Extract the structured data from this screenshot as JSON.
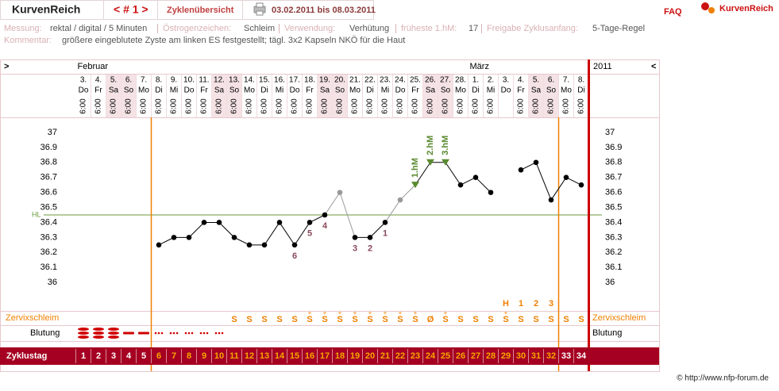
{
  "header": {
    "app": "KurvenReich",
    "nav": "< # 1 >",
    "overview": "Zyklenübersicht",
    "range": "03.02.2011 bis 08.03.2011",
    "faq": "FAQ",
    "logo": "KurvenReich"
  },
  "info": {
    "measure_label": "Messung:",
    "measure": "rektal / digital / 5 Minuten",
    "estrogen_label": "Östrogenzeichen:",
    "estrogen": "Schleim",
    "usage_label": "Verwendung:",
    "usage": "Verhütung",
    "earliest_label": "früheste 1.hM:",
    "earliest": 17,
    "release_label": "Freigabe Zyklusanfang:",
    "release": "5-Tage-Regel",
    "comment_label": "Kommentar:",
    "comment": "größere eingeblutete Zyste am linken ES festgestellt; tägl. 3x2 Kapseln NKÖ für die Haut"
  },
  "footer": "© http://www.nfp-forum.de",
  "chart_data": {
    "type": "line",
    "nav_left": ">",
    "nav_right": "<",
    "year": "2011",
    "months": [
      "Februar",
      null,
      null,
      null,
      null,
      null,
      null,
      null,
      null,
      null,
      null,
      null,
      null,
      null,
      null,
      null,
      null,
      null,
      null,
      null,
      null,
      null,
      null,
      null,
      null,
      null,
      "März",
      null,
      null,
      null,
      null,
      null,
      null,
      null
    ],
    "days": [
      "3.",
      "4.",
      "5.",
      "6.",
      "7.",
      "8.",
      "9.",
      "10.",
      "11.",
      "12.",
      "13.",
      "14.",
      "15.",
      "16.",
      "17.",
      "18.",
      "19.",
      "20.",
      "21.",
      "22.",
      "23.",
      "24.",
      "25.",
      "26.",
      "27.",
      "28.",
      "1.",
      "2.",
      "3.",
      "4.",
      "5.",
      "6.",
      "7.",
      "8."
    ],
    "weekdays": [
      "Do",
      "Fr",
      "Sa",
      "So",
      "Mo",
      "Di",
      "Mi",
      "Do",
      "Fr",
      "Sa",
      "So",
      "Mo",
      "Di",
      "Mi",
      "Do",
      "Fr",
      "Sa",
      "So",
      "Mo",
      "Di",
      "Mi",
      "Do",
      "Fr",
      "Sa",
      "So",
      "Mo",
      "Di",
      "Mi",
      "Do",
      "Fr",
      "Sa",
      "So",
      "Mo",
      "Di"
    ],
    "times": [
      "6:00",
      "6:00",
      "6:00",
      "6:00",
      "6:00",
      "6:00",
      "6:00",
      "6:00",
      "6:00",
      "6:00",
      "6:00",
      "6:00",
      "6:00",
      "6:00",
      "6:00",
      "6:00",
      "6:00",
      "6:00",
      "6:00",
      "6:00",
      "6:00",
      "6:00",
      "6:00",
      "6:00",
      "6:00",
      "6:00",
      "6:00",
      "6:00",
      null,
      "6:00",
      "6:00",
      "6:00",
      "6:00",
      "6:00"
    ],
    "shaded": [
      false,
      false,
      true,
      true,
      false,
      false,
      false,
      false,
      false,
      true,
      true,
      false,
      false,
      false,
      false,
      false,
      true,
      true,
      false,
      false,
      false,
      false,
      false,
      true,
      true,
      false,
      false,
      false,
      false,
      false,
      true,
      true,
      false,
      false
    ],
    "ylim": [
      35.8,
      37.1
    ],
    "yticks": [
      36,
      36.1,
      36.2,
      36.3,
      36.4,
      36.5,
      36.6,
      36.7,
      36.8,
      36.9,
      37
    ],
    "grid": false,
    "values": [
      null,
      null,
      null,
      null,
      null,
      36.25,
      36.3,
      36.3,
      36.4,
      36.4,
      36.3,
      36.25,
      36.25,
      36.4,
      36.25,
      36.4,
      36.45,
      36.6,
      36.3,
      36.3,
      36.4,
      36.55,
      36.65,
      36.8,
      36.8,
      36.65,
      36.7,
      36.6,
      null,
      36.75,
      36.8,
      36.55,
      36.7,
      36.65
    ],
    "color": "#000000",
    "point_colors": [
      "#000000",
      "#000000",
      "#000000",
      "#000000",
      "#000000",
      "#000000",
      "#000000",
      "#000000",
      "#000000",
      "#000000",
      "#000000",
      "#000000",
      "#000000",
      "#000000",
      "#000000",
      "#000000",
      "#000000",
      "#999999",
      "#000000",
      "#000000",
      "#000000",
      "#999999",
      "#000000",
      "#000000",
      "#000000",
      "#000000",
      "#000000",
      "#000000",
      "#000000",
      "#000000",
      "#000000",
      "#000000",
      "#000000",
      "#000000"
    ],
    "hl": {
      "label": "HL",
      "value": 36.45,
      "color": "#6a9a3a"
    },
    "count_labels": [
      null,
      null,
      null,
      null,
      null,
      null,
      null,
      null,
      null,
      null,
      null,
      null,
      null,
      null,
      6,
      5,
      4,
      null,
      3,
      2,
      1,
      null,
      null,
      null,
      null,
      null,
      null,
      null,
      null,
      null,
      null,
      null,
      null,
      null
    ],
    "count_color": "#8a4a5a",
    "hm_labels": [
      null,
      null,
      null,
      null,
      null,
      null,
      null,
      null,
      null,
      null,
      null,
      null,
      null,
      null,
      null,
      null,
      null,
      null,
      null,
      null,
      null,
      null,
      "1.hM",
      "2.hM",
      "3.hM",
      null,
      null,
      null,
      null,
      null,
      null,
      null,
      null,
      null
    ],
    "hm_color": "#5a8a30",
    "peak_labels": [
      null,
      null,
      null,
      null,
      null,
      null,
      null,
      null,
      null,
      null,
      null,
      null,
      null,
      null,
      null,
      null,
      null,
      null,
      null,
      null,
      null,
      null,
      null,
      null,
      null,
      null,
      null,
      null,
      "H",
      1,
      2,
      3,
      null,
      null
    ],
    "mucus_label": "Zervixschleim",
    "mucus": [
      null,
      null,
      null,
      null,
      null,
      null,
      null,
      null,
      null,
      null,
      "S",
      "S",
      "S",
      "S",
      "S",
      "S",
      "S",
      "S",
      "S",
      "S",
      "S",
      "S",
      "S",
      "Ø",
      "S",
      "S",
      "S",
      "S",
      "S",
      "S",
      "S",
      "S",
      "S",
      "S"
    ],
    "mucus_plus": [
      null,
      null,
      null,
      null,
      null,
      null,
      null,
      null,
      null,
      null,
      null,
      null,
      null,
      null,
      null,
      "+",
      "+",
      "+",
      "+",
      "+",
      "+",
      "+",
      "+",
      null,
      "+",
      null,
      null,
      null,
      "+",
      null,
      null,
      null,
      null,
      null
    ],
    "mucus_color": "#f08000",
    "bleeding_label": "Blutung",
    "bleeding": [
      3,
      3,
      3,
      2,
      2,
      1,
      1,
      1,
      1,
      1,
      null,
      null,
      null,
      null,
      null,
      null,
      null,
      null,
      null,
      null,
      null,
      null,
      null,
      null,
      null,
      null,
      null,
      null,
      null,
      null,
      null,
      null,
      null,
      null
    ],
    "bleeding_color": "#d00000",
    "cycle_label": "Zyklustag",
    "cycle_days": [
      1,
      2,
      3,
      4,
      5,
      6,
      7,
      8,
      9,
      10,
      11,
      12,
      13,
      14,
      15,
      16,
      17,
      18,
      19,
      20,
      21,
      22,
      23,
      24,
      25,
      26,
      27,
      28,
      29,
      30,
      31,
      32,
      33,
      34
    ],
    "vertical_lines": [
      {
        "after_day": 5,
        "color": "#f08000"
      },
      {
        "after_day": 32,
        "color": "#f08000"
      }
    ]
  }
}
